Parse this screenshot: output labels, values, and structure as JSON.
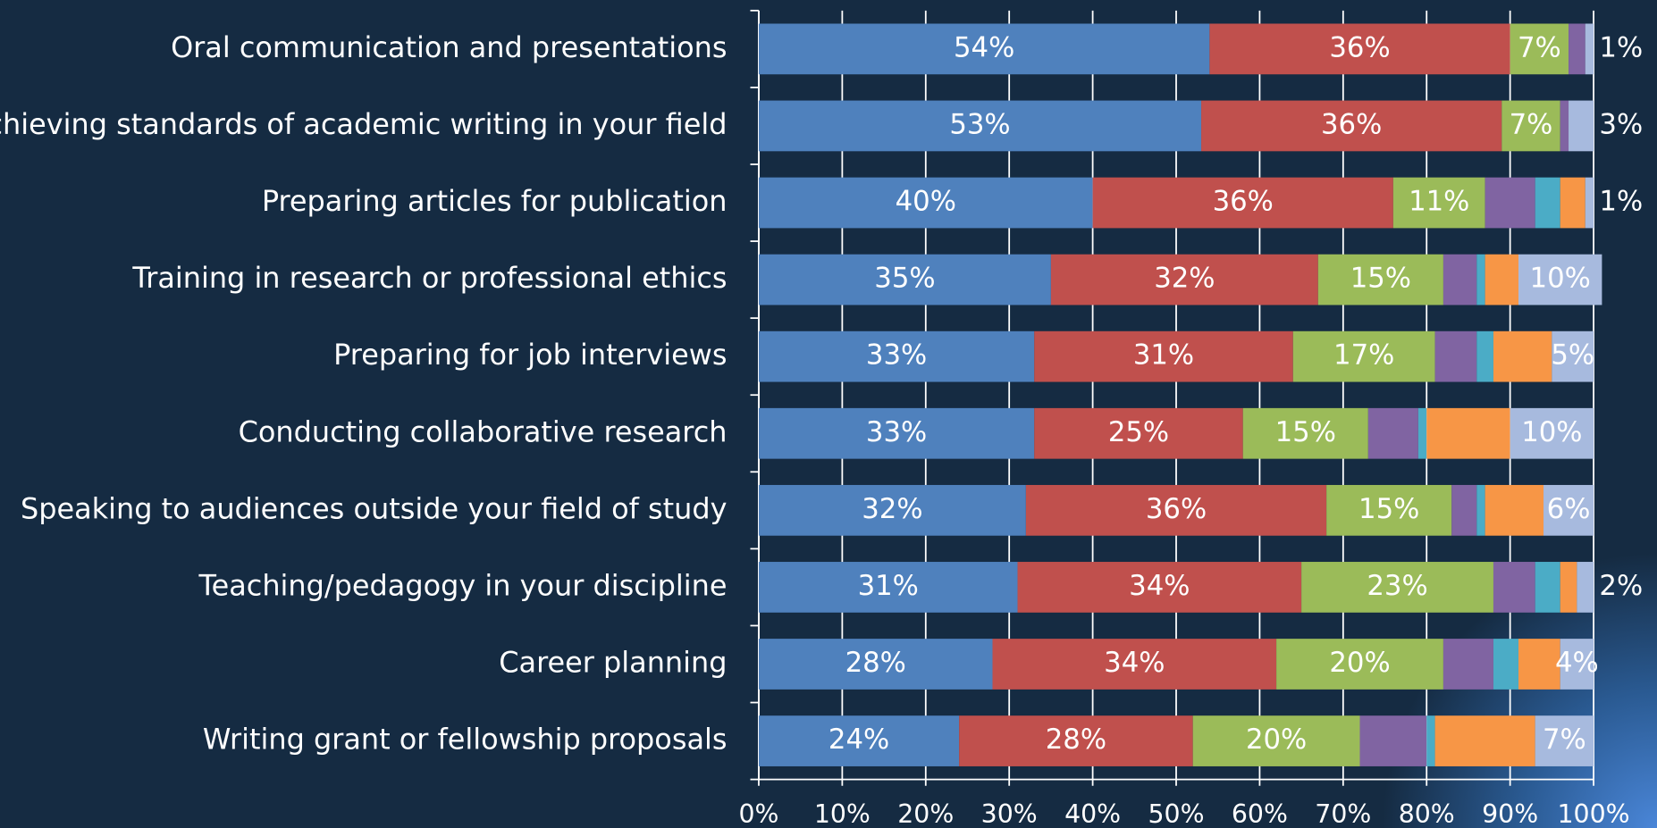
{
  "chart_data": {
    "type": "stacked-bar-horizontal",
    "categories": [
      "Oral communication and presentations",
      "Achieving standards of academic writing in your field",
      "Preparing articles for publication",
      "Training in research or professional ethics",
      "Preparing for job interviews",
      "Conducting collaborative research",
      "Speaking to audiences outside your field of study",
      "Teaching/pedagogy in your discipline",
      "Career planning",
      "Writing grant or fellowship proposals"
    ],
    "series": [
      {
        "color": "#4f81bd",
        "values": [
          54,
          53,
          40,
          35,
          33,
          33,
          32,
          31,
          28,
          24
        ],
        "value_labels": [
          "54%",
          "53%",
          "40%",
          "35%",
          "33%",
          "33%",
          "32%",
          "31%",
          "28%",
          "24%"
        ]
      },
      {
        "color": "#c0504d",
        "values": [
          36,
          36,
          36,
          32,
          31,
          25,
          36,
          34,
          34,
          28
        ],
        "value_labels": [
          "36%",
          "36%",
          "36%",
          "32%",
          "31%",
          "25%",
          "36%",
          "34%",
          "34%",
          "28%"
        ]
      },
      {
        "color": "#9bbb59",
        "values": [
          7,
          7,
          11,
          15,
          17,
          15,
          15,
          23,
          20,
          20
        ],
        "value_labels": [
          "7%",
          "7%",
          "11%",
          "15%",
          "17%",
          "15%",
          "15%",
          "23%",
          "20%",
          "20%"
        ]
      },
      {
        "color": "#8064a2",
        "values": [
          2,
          1,
          6,
          4,
          5,
          6,
          3,
          5,
          6,
          8
        ]
      },
      {
        "color": "#4bacc6",
        "values": [
          0,
          0,
          3,
          1,
          2,
          1,
          1,
          3,
          3,
          1
        ]
      },
      {
        "color": "#f79646",
        "values": [
          0,
          0,
          3,
          4,
          7,
          10,
          7,
          2,
          5,
          12
        ]
      },
      {
        "color": "#a7bade",
        "values": [
          1,
          3,
          1,
          10,
          5,
          10,
          6,
          2,
          4,
          7
        ],
        "value_labels": [
          "1%",
          "3%",
          "1%",
          "10%",
          "5%",
          "10%",
          "6%",
          "2%",
          "4%",
          "7%"
        ]
      }
    ],
    "xlim": [
      0,
      100
    ],
    "xticks": [
      {
        "value": 0,
        "label": "0%"
      },
      {
        "value": 10,
        "label": "10%"
      },
      {
        "value": 20,
        "label": "20%"
      },
      {
        "value": 30,
        "label": "30%"
      },
      {
        "value": 40,
        "label": "40%"
      },
      {
        "value": 50,
        "label": "50%"
      },
      {
        "value": 60,
        "label": "60%"
      },
      {
        "value": 70,
        "label": "70%"
      },
      {
        "value": 80,
        "label": "80%"
      },
      {
        "value": 90,
        "label": "90%"
      },
      {
        "value": 100,
        "label": "100%"
      }
    ],
    "grid": true
  }
}
